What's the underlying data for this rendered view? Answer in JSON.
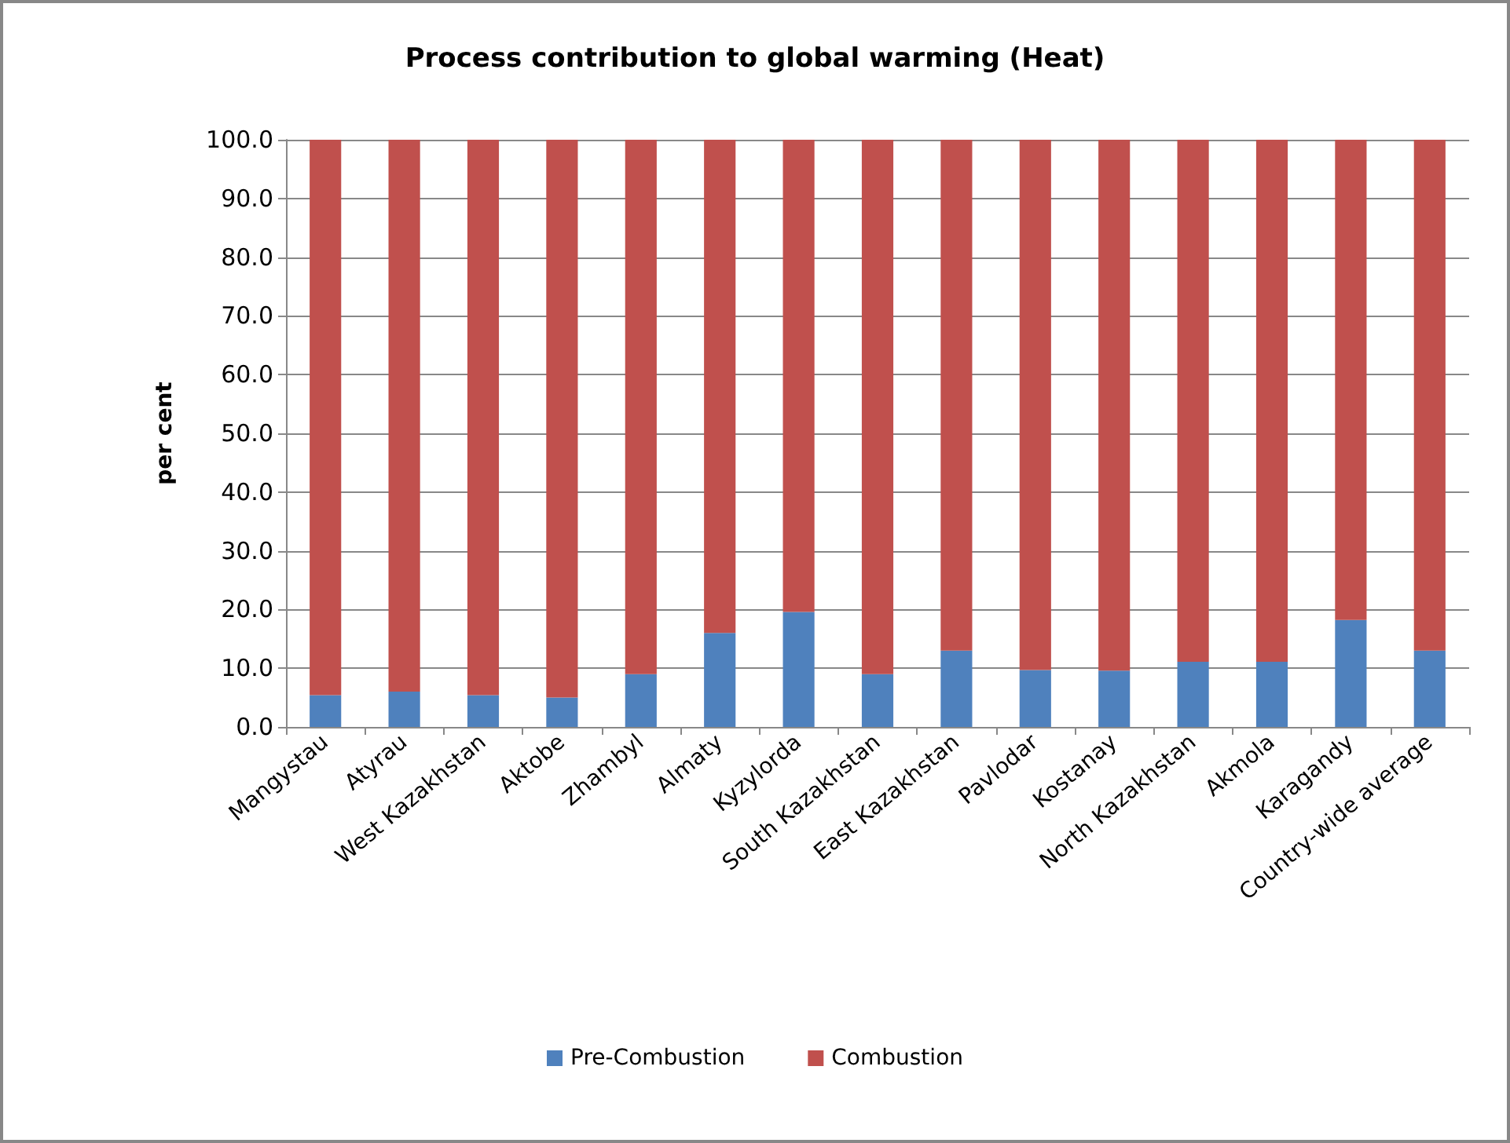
{
  "chart_data": {
    "type": "bar",
    "title": "Process contribution to global warming (Heat)",
    "ylabel": "per cent",
    "stacked": true,
    "categories": [
      "Mangystau",
      "Atyrau",
      "West Kazakhstan",
      "Aktobe",
      "Zhambyl",
      "Almaty",
      "Kyzylorda",
      "South Kazakhstan",
      "East Kazakhstan",
      "Pavlodar",
      "Kostanay",
      "North Kazakhstan",
      "Akmola",
      "Karagandy",
      "Country-wide average"
    ],
    "series": [
      {
        "name": "Pre-Combustion",
        "color": "#4f81bd",
        "values": [
          5.4,
          6.0,
          5.4,
          5.0,
          9.0,
          16.0,
          19.6,
          9.0,
          13.0,
          9.7,
          9.6,
          11.1,
          11.1,
          18.2,
          13.0
        ]
      },
      {
        "name": "Combustion",
        "color": "#c0504d",
        "values": [
          94.6,
          94.0,
          94.6,
          95.0,
          91.0,
          84.0,
          80.4,
          91.0,
          87.0,
          90.3,
          90.4,
          88.9,
          88.9,
          81.8,
          87.0
        ]
      }
    ],
    "ylim": [
      0,
      100
    ],
    "yticks": [
      {
        "value": 0,
        "label": "0.0"
      },
      {
        "value": 10,
        "label": "10.0"
      },
      {
        "value": 20,
        "label": "20.0"
      },
      {
        "value": 30,
        "label": "30.0"
      },
      {
        "value": 40,
        "label": "40.0"
      },
      {
        "value": 50,
        "label": "50.0"
      },
      {
        "value": 60,
        "label": "60.0"
      },
      {
        "value": 70,
        "label": "70.0"
      },
      {
        "value": 80,
        "label": "80.0"
      },
      {
        "value": 90,
        "label": "90.0"
      },
      {
        "value": 100,
        "label": "100.0"
      }
    ],
    "grid": "y",
    "legend": "bottom"
  }
}
